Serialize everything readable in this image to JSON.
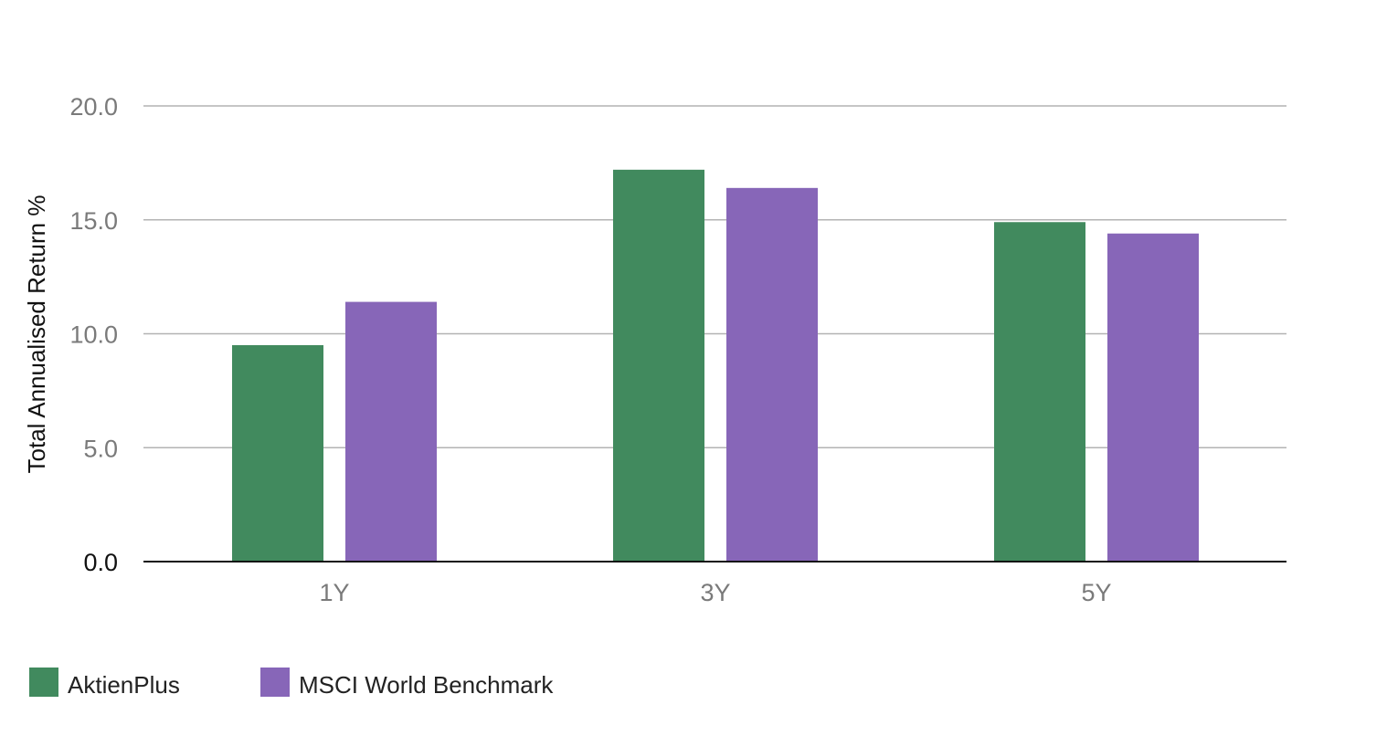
{
  "chart_data": {
    "type": "bar",
    "categories": [
      "1Y",
      "3Y",
      "5Y"
    ],
    "series": [
      {
        "name": "AktienPlus",
        "values": [
          9.5,
          17.2,
          14.9
        ],
        "color": "#418a5e"
      },
      {
        "name": "MSCI World Benchmark",
        "values": [
          11.4,
          16.4,
          14.4
        ],
        "color": "#8766b8"
      }
    ],
    "title": "",
    "xlabel": "",
    "ylabel": "Total Annualised Return %",
    "ylim": [
      0,
      20
    ],
    "yticks": [
      "0.0",
      "5.0",
      "10.0",
      "15.0",
      "20.0"
    ],
    "grid": true,
    "legend": "bottom-left"
  }
}
